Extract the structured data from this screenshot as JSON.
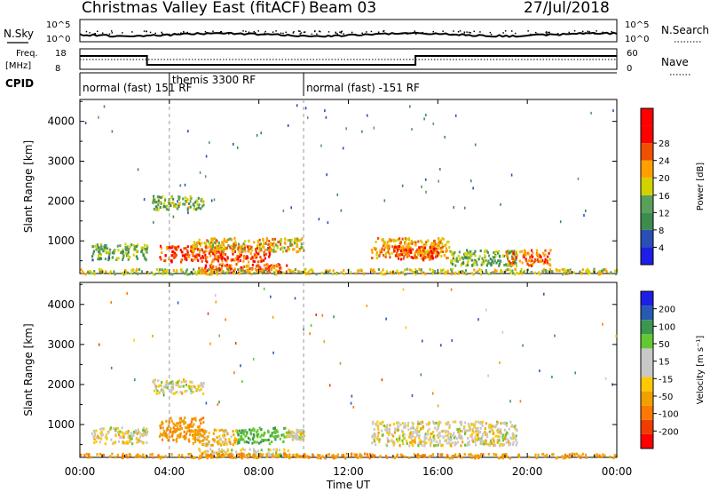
{
  "header": {
    "radar": "Christmas Valley East (fitACF)",
    "beam": "Beam 03",
    "date": "27/Jul/2018"
  },
  "status_panels": {
    "nsky_label": "N.Sky",
    "nsky_ticks": [
      "10^5",
      "10^0"
    ],
    "nsearch_label": "N.Search",
    "nsearch_ticks": [
      "10^5",
      "10^0"
    ],
    "freq_label": "Freq.",
    "freq_unit": "[MHz]",
    "freq_ticks": [
      "18",
      "8"
    ],
    "nave_label": "Nave",
    "nave_ticks": [
      "60",
      "0"
    ],
    "cpid_label": "CPID",
    "cpid_segments": [
      {
        "start_h": 0,
        "end_h": 4,
        "label": "normal (fast) 151 RF"
      },
      {
        "start_h": 4,
        "end_h": 10,
        "label": "themis 3300 RF"
      },
      {
        "start_h": 10,
        "end_h": 24,
        "label": "normal (fast) -151 RF"
      }
    ]
  },
  "colors": {
    "power": [
      "#1e1ee6",
      "#2850b4",
      "#3c8c50",
      "#5aa05a",
      "#d2d200",
      "#ffa000",
      "#f05000",
      "#ff0000",
      "#ff0000"
    ],
    "velocity": [
      "#ff0000",
      "#f03c00",
      "#ff7800",
      "#f0a000",
      "#ffc800",
      "#c8c8c8",
      "#c8c8c8",
      "#64c832",
      "#3c9650",
      "#285ab4",
      "#1e1ee6"
    ]
  },
  "chart_data": [
    {
      "type": "heatmap",
      "name": "power",
      "xlabel": "",
      "ylabel": "Slant Range [km]",
      "xlim": [
        0,
        24
      ],
      "ylim": [
        180,
        4550
      ],
      "x_ticks": [
        "00:00",
        "04:00",
        "08:00",
        "12:00",
        "16:00",
        "20:00",
        "00:00"
      ],
      "y_ticks": [
        1000,
        2000,
        3000,
        4000
      ],
      "colorbar_label": "Power [dB]",
      "colorbar_ticks": [
        4,
        8,
        12,
        16,
        20,
        24,
        28
      ],
      "clim": [
        0,
        30
      ],
      "mode_change_times_h": [
        4,
        10
      ],
      "regions": [
        {
          "x": [
            0.5,
            3.0
          ],
          "y": [
            550,
            950
          ],
          "value": 13
        },
        {
          "x": [
            3.2,
            5.5
          ],
          "y": [
            1800,
            2150
          ],
          "value": 15
        },
        {
          "x": [
            3.5,
            8.5
          ],
          "y": [
            500,
            900
          ],
          "value": 27
        },
        {
          "x": [
            5.0,
            10.0
          ],
          "y": [
            750,
            1100
          ],
          "value": 20
        },
        {
          "x": [
            5.2,
            7.2
          ],
          "y": [
            230,
            450
          ],
          "value": 26
        },
        {
          "x": [
            7.3,
            9.3
          ],
          "y": [
            230,
            450
          ],
          "value": 25
        },
        {
          "x": [
            13.0,
            16.5
          ],
          "y": [
            600,
            1100
          ],
          "value": 22
        },
        {
          "x": [
            14.0,
            16.0
          ],
          "y": [
            550,
            900
          ],
          "value": 27
        },
        {
          "x": [
            16.5,
            19.5
          ],
          "y": [
            400,
            800
          ],
          "value": 14
        },
        {
          "x": [
            19.0,
            21.0
          ],
          "y": [
            400,
            800
          ],
          "value": 24
        },
        {
          "x": [
            0.0,
            24.0
          ],
          "y": [
            190,
            320
          ],
          "value": 18
        }
      ]
    },
    {
      "type": "heatmap",
      "name": "velocity",
      "xlabel": "Time UT",
      "ylabel": "Slant Range [km]",
      "xlim": [
        0,
        24
      ],
      "ylim": [
        180,
        4550
      ],
      "x_ticks": [
        "00:00",
        "04:00",
        "08:00",
        "12:00",
        "16:00",
        "20:00",
        "00:00"
      ],
      "y_ticks": [
        1000,
        2000,
        3000,
        4000
      ],
      "colorbar_label": "Velocity [m s⁻¹]",
      "colorbar_ticks": [
        200,
        100,
        50,
        15,
        -15,
        -50,
        -100,
        -200
      ],
      "mode_change_times_h": [
        4,
        10
      ],
      "regions": [
        {
          "x": [
            0.5,
            3.0
          ],
          "y": [
            550,
            950
          ],
          "value": 0
        },
        {
          "x": [
            3.2,
            5.5
          ],
          "y": [
            1800,
            2150
          ],
          "value": 0
        },
        {
          "x": [
            3.5,
            5.5
          ],
          "y": [
            600,
            1200
          ],
          "value": -45
        },
        {
          "x": [
            5.0,
            7.0
          ],
          "y": [
            500,
            900
          ],
          "value": -20
        },
        {
          "x": [
            7.0,
            9.2
          ],
          "y": [
            550,
            950
          ],
          "value": 45
        },
        {
          "x": [
            9.2,
            10.0
          ],
          "y": [
            650,
            900
          ],
          "value": 0
        },
        {
          "x": [
            13.0,
            19.5
          ],
          "y": [
            500,
            1100
          ],
          "value": 0
        },
        {
          "x": [
            5.2,
            9.3
          ],
          "y": [
            230,
            430
          ],
          "value": 0
        },
        {
          "x": [
            0.0,
            24.0
          ],
          "y": [
            190,
            300
          ],
          "value": -40
        }
      ]
    }
  ]
}
